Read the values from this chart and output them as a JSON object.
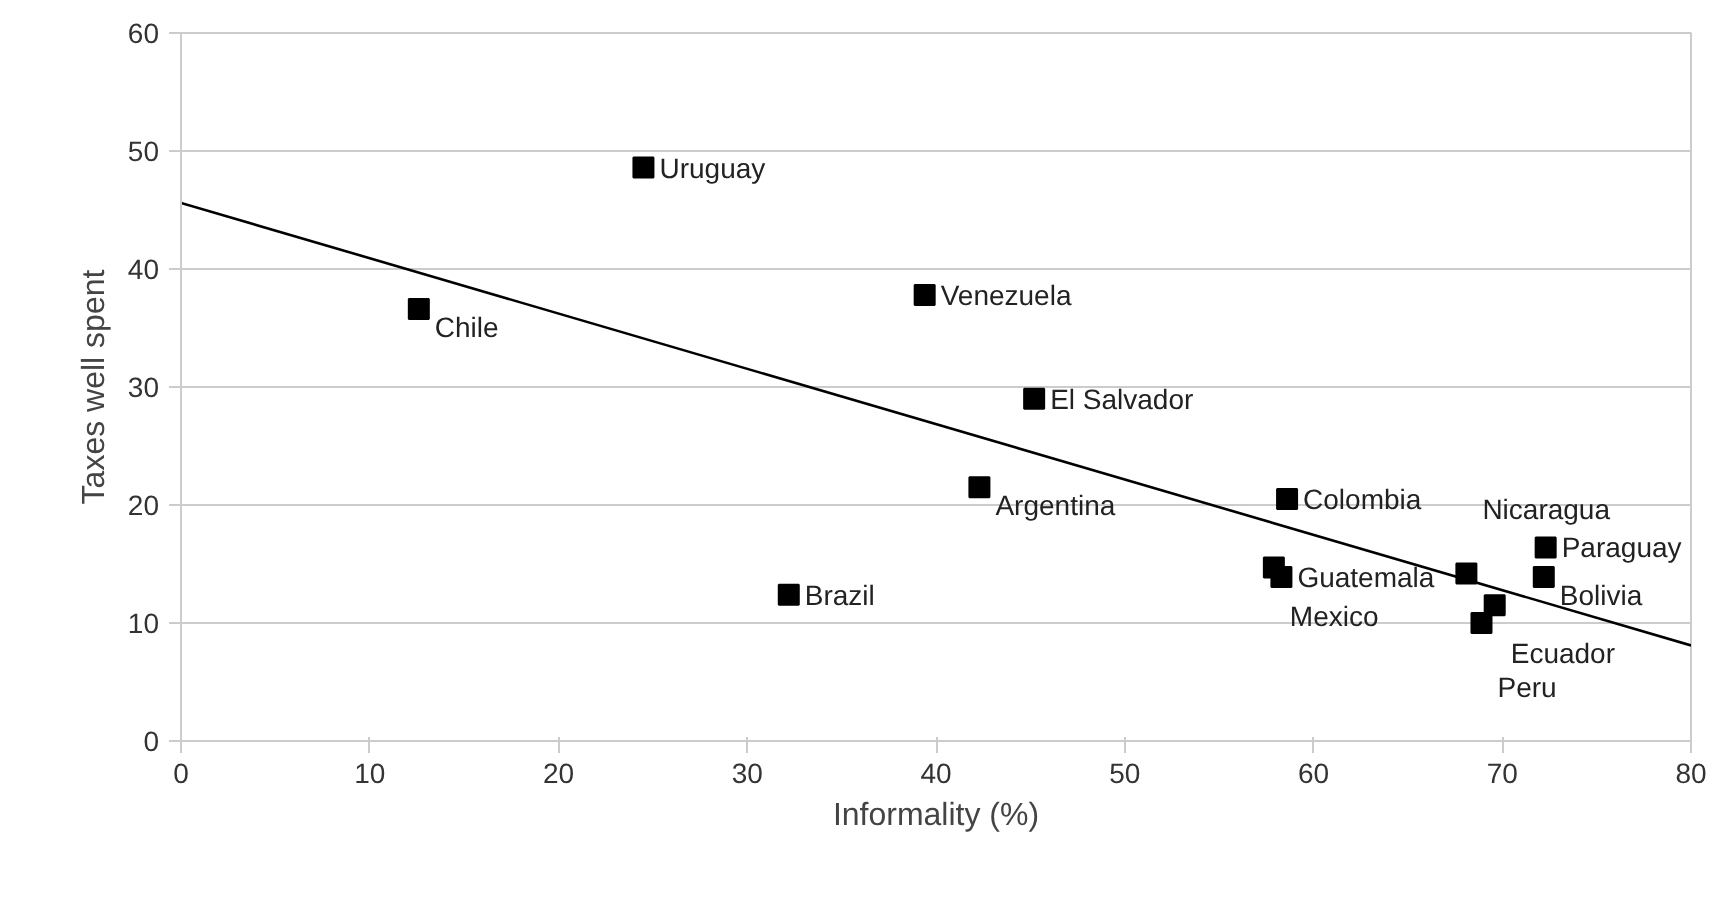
{
  "chart_data": {
    "type": "scatter",
    "xlabel": "Informality (%)",
    "ylabel": "Taxes well spent",
    "xlim": [
      0,
      80
    ],
    "ylim": [
      0,
      60
    ],
    "xticks": [
      0,
      10,
      20,
      30,
      40,
      50,
      60,
      70,
      80
    ],
    "yticks": [
      0,
      10,
      20,
      30,
      40,
      50,
      60
    ],
    "grid": "y",
    "series": [
      {
        "marker": "square",
        "color": "#000000",
        "x": [
          24.5,
          12.6,
          39.4,
          45.2,
          42.3,
          58.6,
          32.2,
          57.9,
          58.3,
          68.1,
          72.3,
          72.2,
          69.6,
          68.9
        ],
        "values": [
          48.6,
          36.6,
          37.8,
          29.0,
          21.5,
          20.5,
          12.4,
          14.7,
          13.9,
          14.2,
          16.4,
          13.9,
          11.5,
          10.0
        ]
      },
      {
        "type": "line",
        "color": "#000000",
        "x": [
          0,
          80
        ],
        "values": [
          45.6,
          8.1
        ]
      }
    ],
    "annotations": [
      {
        "text": "Uruguay",
        "x": 24.5,
        "y": 48.6
      },
      {
        "text": "Chile",
        "x": 12.6,
        "y": 36.6
      },
      {
        "text": "Venezuela",
        "x": 39.4,
        "y": 37.8
      },
      {
        "text": "El Salvador",
        "x": 45.2,
        "y": 29.0
      },
      {
        "text": "Argentina",
        "x": 42.3,
        "y": 21.5
      },
      {
        "text": "Colombia",
        "x": 58.6,
        "y": 20.5
      },
      {
        "text": "Brazil",
        "x": 32.2,
        "y": 12.4
      },
      {
        "text": "Mexico",
        "x": 57.9,
        "y": 14.7
      },
      {
        "text": "Guatemala",
        "x": 58.3,
        "y": 13.9
      },
      {
        "text": "Nicaragua",
        "x": 68.1,
        "y": 14.2
      },
      {
        "text": "Paraguay",
        "x": 72.3,
        "y": 16.4
      },
      {
        "text": "Bolivia",
        "x": 72.2,
        "y": 13.9
      },
      {
        "text": "Ecuador",
        "x": 69.6,
        "y": 11.5
      },
      {
        "text": "Peru",
        "x": 68.9,
        "y": 10.0
      }
    ]
  }
}
